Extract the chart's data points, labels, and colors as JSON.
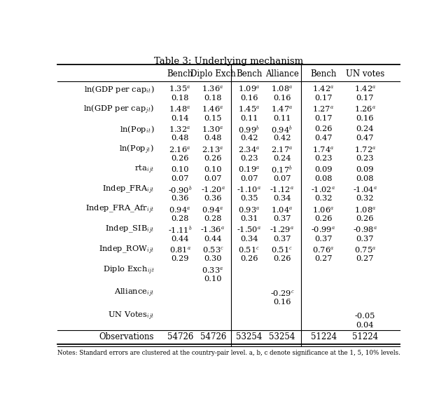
{
  "title": "Table 3: Underlying mechanism",
  "col_headers": [
    "Bench",
    "Diplo Exch",
    "Bench",
    "Alliance",
    "Bench",
    "UN votes"
  ],
  "rows": [
    {
      "label": [
        "ln(GDP per cap",
        "it",
        ")"
      ],
      "values": [
        "1.35^a",
        "1.36^a",
        "1.09^a",
        "1.08^a",
        "1.42^a",
        "1.42^a"
      ],
      "se": [
        "0.18",
        "0.18",
        "0.16",
        "0.16",
        "0.17",
        "0.17"
      ]
    },
    {
      "label": [
        "ln(GDP per cap",
        "jt",
        ")"
      ],
      "values": [
        "1.48^a",
        "1.46^a",
        "1.45^a",
        "1.47^a",
        "1.27^a",
        "1.26^a"
      ],
      "se": [
        "0.14",
        "0.15",
        "0.11",
        "0.11",
        "0.17",
        "0.16"
      ]
    },
    {
      "label": [
        "ln(Pop",
        "it",
        ")"
      ],
      "values": [
        "1.32^a",
        "1.30^a",
        "0.99^b",
        "0.94^b",
        "0.26",
        "0.24"
      ],
      "se": [
        "0.48",
        "0.48",
        "0.42",
        "0.42",
        "0.47",
        "0.47"
      ]
    },
    {
      "label": [
        "ln(Pop",
        "jt",
        ")"
      ],
      "values": [
        "2.16^a",
        "2.13^a",
        "2.34^a",
        "2.17^a",
        "1.74^a",
        "1.72^a"
      ],
      "se": [
        "0.26",
        "0.26",
        "0.23",
        "0.24",
        "0.23",
        "0.23"
      ]
    },
    {
      "label": [
        "rta",
        "ijt",
        ""
      ],
      "values": [
        "0.10",
        "0.10",
        "0.19^a",
        "0.17^b",
        "0.09",
        "0.09"
      ],
      "se": [
        "0.07",
        "0.07",
        "0.07",
        "0.07",
        "0.08",
        "0.08"
      ]
    },
    {
      "label": [
        "Indep_FRA",
        "ijt",
        ""
      ],
      "values": [
        "-0.90^b",
        "-1.20^a",
        "-1.10^a",
        "-1.12^a",
        "-1.02^a",
        "-1.04^a"
      ],
      "se": [
        "0.36",
        "0.36",
        "0.35",
        "0.34",
        "0.32",
        "0.32"
      ]
    },
    {
      "label": [
        "Indep_FRA_Afr",
        "ijt",
        ""
      ],
      "values": [
        "0.94^a",
        "0.94^a",
        "0.93^a",
        "1.04^a",
        "1.06^a",
        "1.08^a"
      ],
      "se": [
        "0.28",
        "0.28",
        "0.31",
        "0.37",
        "0.26",
        "0.26"
      ]
    },
    {
      "label": [
        "Indep_SIB",
        "ijt",
        ""
      ],
      "values": [
        "-1.11^b",
        "-1.36^a",
        "-1.50^a",
        "-1.29^a",
        "-0.99^a",
        "-0.98^a"
      ],
      "se": [
        "0.44",
        "0.44",
        "0.34",
        "0.37",
        "0.37",
        "0.37"
      ]
    },
    {
      "label": [
        "Indep_ROW",
        "ijt",
        ""
      ],
      "values": [
        "0.81^a",
        "0.53^c",
        "0.51^c",
        "0.51^c",
        "0.76^a",
        "0.75^a"
      ],
      "se": [
        "0.29",
        "0.30",
        "0.26",
        "0.26",
        "0.27",
        "0.27"
      ]
    },
    {
      "label": [
        "Diplo Exch",
        "ijt",
        ""
      ],
      "values": [
        "",
        "0.33^a",
        "",
        "",
        "",
        ""
      ],
      "se": [
        "",
        "0.10",
        "",
        "",
        "",
        ""
      ]
    },
    {
      "label": [
        "Alliance",
        "ijt",
        ""
      ],
      "values": [
        "",
        "",
        "",
        "-0.29^c",
        "",
        ""
      ],
      "se": [
        "",
        "",
        "",
        "0.16",
        "",
        ""
      ]
    },
    {
      "label": [
        "UN Votes",
        "ijt",
        ""
      ],
      "values": [
        "",
        "",
        "",
        "",
        "",
        "-0.05"
      ],
      "se": [
        "",
        "",
        "",
        "",
        "",
        "0.04"
      ]
    }
  ],
  "obs_row": [
    "Observations",
    "54726",
    "54726",
    "53254",
    "53254",
    "51224",
    "51224"
  ],
  "footnote": "Notes: Standard errors are clustered at the country-pair level. a, b, c denote significance at the 1, 5, 10% levels."
}
